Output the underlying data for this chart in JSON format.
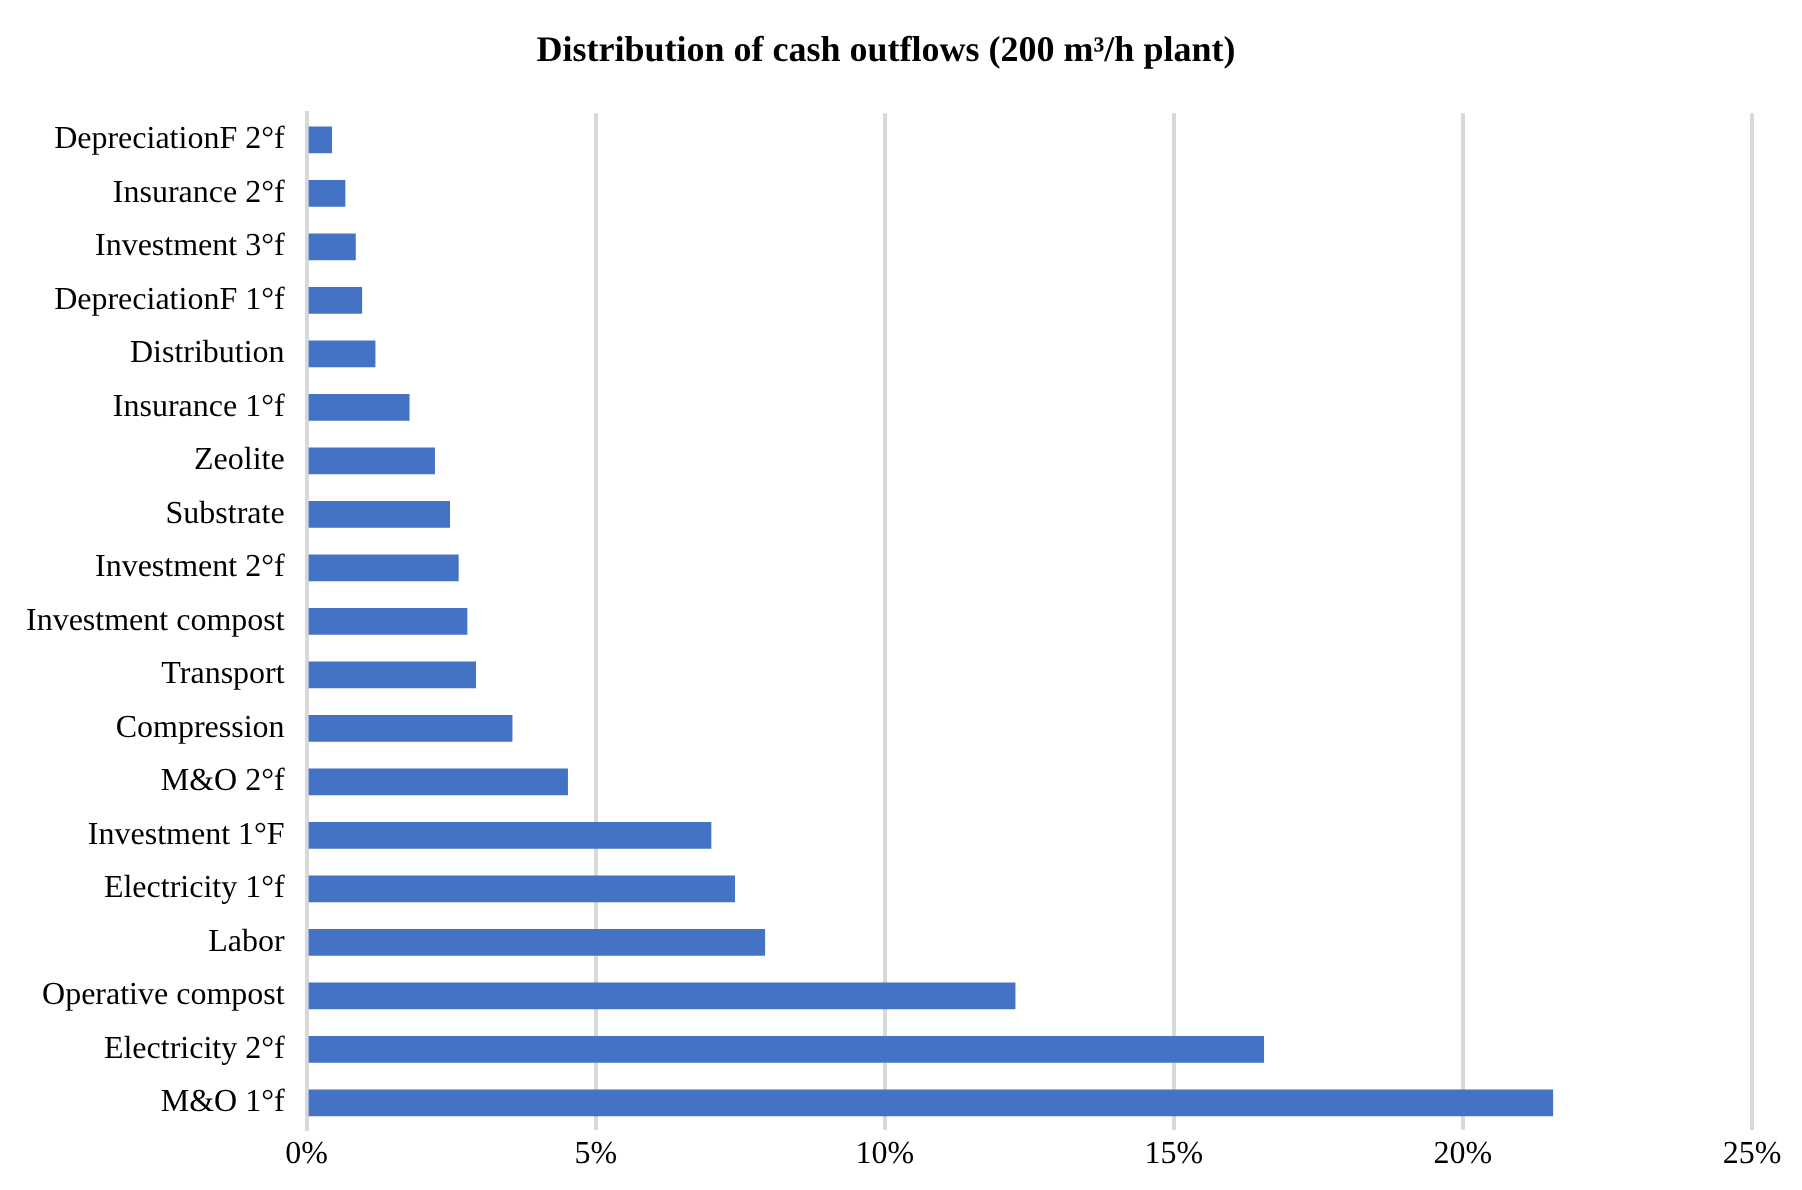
{
  "chart_data": {
    "type": "bar",
    "orientation": "horizontal",
    "title": "Distribution of cash outflows (200 m³/h plant)",
    "categories": [
      "DepreciationF 2°f",
      "Insurance 2°f",
      "Investment 3°f",
      "DepreciationF 1°f",
      "Distribution",
      "Insurance 1°f",
      "Zeolite",
      "Substrate",
      "Investment 2°f",
      "Investment compost",
      "Transport",
      "Compression",
      "M&O 2°f",
      "Investment 1°F",
      "Electricity 1°f",
      "Labor",
      "Operative compost",
      "Electricity 2°f",
      "M&O 1°f"
    ],
    "values": [
      0.44,
      0.67,
      0.85,
      0.96,
      1.19,
      1.78,
      2.22,
      2.48,
      2.63,
      2.78,
      2.93,
      3.56,
      4.52,
      7.0,
      7.41,
      7.93,
      12.26,
      16.56,
      21.56
    ],
    "color": "#4472c4",
    "xlim": [
      0,
      25
    ],
    "xticks": [
      {
        "value": 0,
        "label": "0%"
      },
      {
        "value": 5,
        "label": "5%"
      },
      {
        "value": 10,
        "label": "10%"
      },
      {
        "value": 15,
        "label": "15%"
      },
      {
        "value": 20,
        "label": "20%"
      },
      {
        "value": 25,
        "label": "25%"
      }
    ],
    "grid": "x"
  }
}
